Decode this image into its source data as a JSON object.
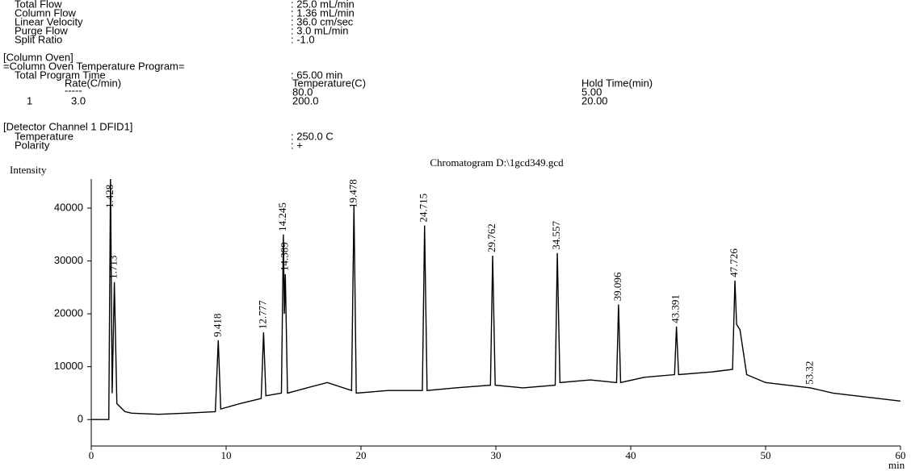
{
  "header": {
    "flow": [
      {
        "label": "Total Flow",
        "value": ": 25.0 mL/min"
      },
      {
        "label": "Column Flow",
        "value": ": 1.36 mL/min"
      },
      {
        "label": "Linear Velocity",
        "value": ": 36.0 cm/sec"
      },
      {
        "label": "Purge Flow",
        "value": ": 3.0 mL/min"
      },
      {
        "label": "Split Ratio",
        "value": ": -1.0"
      }
    ],
    "oven_title": "[Column Oven]",
    "program_title": "=Column Oven Temperature Program=",
    "total_time": {
      "label": "Total Program Time",
      "value": ": 65.00 min"
    },
    "program_columns": [
      "Rate(C/min)",
      "Temperature(C)",
      "Hold Time(min)"
    ],
    "program_rows": [
      [
        "",
        "-----",
        "80.0",
        "5.00"
      ],
      [
        "1",
        "3.0",
        "200.0",
        "20.00"
      ]
    ],
    "detector_title": "[Detector Channel 1 DFID1]",
    "detector": [
      {
        "label": "Temperature",
        "value": ": 250.0 C"
      },
      {
        "label": "Polarity",
        "value": ": +"
      }
    ]
  },
  "chart_data": {
    "type": "line",
    "title": "Chromatogram D:\\1gcd349.gcd",
    "y_label": "Intensity",
    "x_label": "min",
    "color": "#000000",
    "x": [
      0,
      1.3,
      1.428,
      1.55,
      1.713,
      1.9,
      2.5,
      3,
      5,
      7,
      9.2,
      9.418,
      9.6,
      11,
      12.6,
      12.777,
      12.95,
      14.1,
      14.245,
      14.32,
      14.389,
      14.55,
      16,
      17.5,
      19.3,
      19.478,
      19.65,
      22,
      24.55,
      24.715,
      24.9,
      27,
      29.6,
      29.762,
      29.95,
      32,
      34.4,
      34.557,
      34.75,
      37,
      38.95,
      39.096,
      39.25,
      41,
      43.25,
      43.391,
      43.55,
      46,
      47.55,
      47.726,
      47.85,
      48.1,
      48.6,
      50,
      53.32,
      55,
      60
    ],
    "values": [
      0,
      0,
      46000,
      5000,
      26000,
      3000,
      1500,
      1200,
      1000,
      1200,
      1500,
      15000,
      2000,
      3000,
      4000,
      16500,
      4500,
      5000,
      35000,
      20000,
      27500,
      5000,
      6000,
      7000,
      5500,
      40500,
      5000,
      5500,
      5500,
      36700,
      5500,
      6000,
      6500,
      31000,
      6500,
      6000,
      6500,
      31500,
      7000,
      7500,
      7000,
      21800,
      7000,
      8000,
      8500,
      17600,
      8500,
      9000,
      9500,
      26300,
      18000,
      17000,
      8500,
      7000,
      6000,
      5000,
      3500
    ],
    "peaks": [
      1.428,
      1.713,
      9.418,
      12.777,
      14.245,
      14.389,
      19.478,
      24.715,
      29.762,
      34.557,
      39.096,
      43.391,
      47.726,
      53.32
    ],
    "xlim": [
      0,
      60
    ],
    "xticks": [
      0,
      10,
      20,
      30,
      40,
      50,
      60
    ],
    "ylim": [
      -5000,
      45500
    ],
    "yticks": [
      0,
      10000,
      20000,
      30000,
      40000
    ]
  }
}
